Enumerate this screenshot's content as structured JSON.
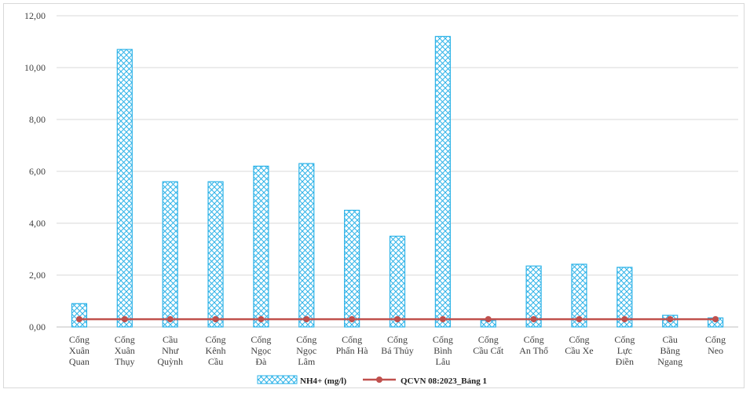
{
  "chart_data": {
    "type": "bar",
    "categories": [
      [
        "Cống",
        "Xuân",
        "Quan"
      ],
      [
        "Cống",
        "Xuân",
        "Thụy"
      ],
      [
        "Cầu",
        "Như",
        "Quỳnh"
      ],
      [
        "Cống",
        "Kênh",
        "Cầu"
      ],
      [
        "Cống",
        "Ngọc",
        "Đà"
      ],
      [
        "Cống",
        "Ngọc",
        "Lâm"
      ],
      [
        "Cống",
        "Phấn Hà"
      ],
      [
        "Cống",
        "Bá Thủy"
      ],
      [
        "Cống",
        "Bình",
        "Lâu"
      ],
      [
        "Cống",
        "Cầu Cất"
      ],
      [
        "Cống",
        "An Thổ"
      ],
      [
        "Cống",
        "Cầu Xe"
      ],
      [
        "Cống",
        "Lực",
        "Điền"
      ],
      [
        "Cầu",
        "Bằng",
        "Ngang"
      ],
      [
        "Cống",
        "Neo"
      ]
    ],
    "series": [
      {
        "name": "NH4+ (mg/l)",
        "kind": "bar",
        "color": "#2eb3e8",
        "values": [
          0.9,
          10.7,
          5.6,
          5.6,
          6.2,
          6.3,
          4.5,
          3.5,
          11.2,
          0.25,
          2.35,
          2.42,
          2.3,
          0.45,
          0.35
        ]
      },
      {
        "name": "QCVN 08:2023_Bảng 1",
        "kind": "line",
        "color": "#c0504d",
        "values": [
          0.3,
          0.3,
          0.3,
          0.3,
          0.3,
          0.3,
          0.3,
          0.3,
          0.3,
          0.3,
          0.3,
          0.3,
          0.3,
          0.3,
          0.3
        ]
      }
    ],
    "ylim": [
      0,
      12
    ],
    "yticks": [
      "0,00",
      "2,00",
      "4,00",
      "6,00",
      "8,00",
      "10,00",
      "12,00"
    ],
    "grid": true,
    "legend": "bottom"
  }
}
